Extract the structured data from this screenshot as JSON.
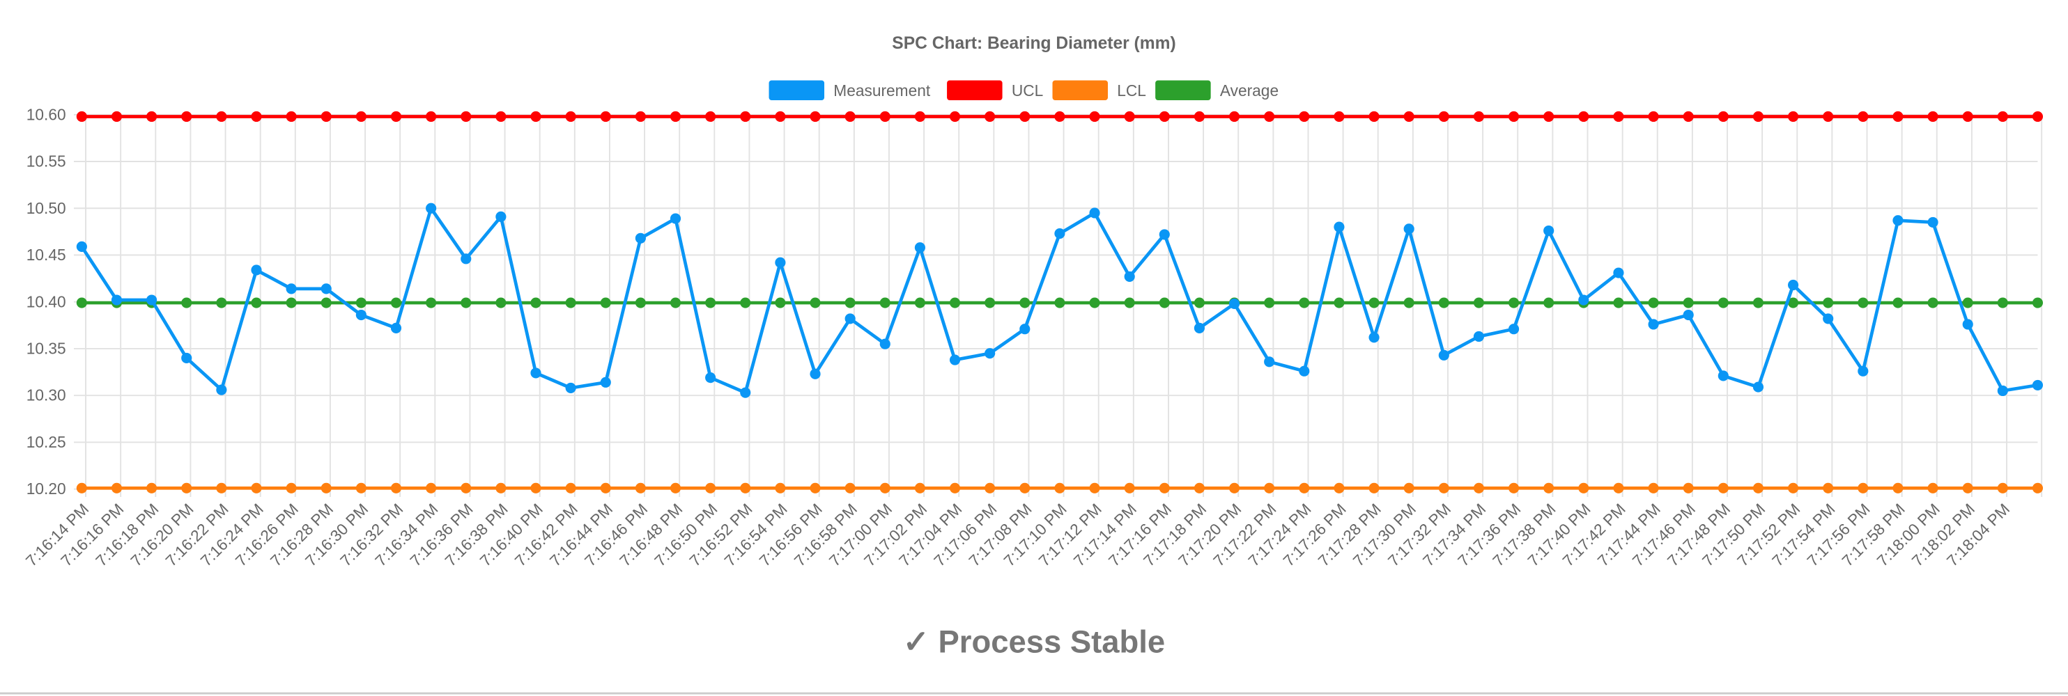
{
  "chart_data": {
    "type": "line",
    "title": "SPC Chart: Bearing Diameter (mm)",
    "xlabel": "",
    "ylabel": "",
    "ylim": [
      10.2,
      10.6
    ],
    "yticks": [
      "10.60",
      "10.55",
      "10.50",
      "10.45",
      "10.40",
      "10.35",
      "10.30",
      "10.25",
      "10.20"
    ],
    "grid": true,
    "legend_position": "top",
    "categories": [
      "7:16:14 PM",
      "7:16:16 PM",
      "7:16:18 PM",
      "7:16:20 PM",
      "7:16:22 PM",
      "7:16:24 PM",
      "7:16:26 PM",
      "7:16:28 PM",
      "7:16:30 PM",
      "7:16:32 PM",
      "7:16:34 PM",
      "7:16:36 PM",
      "7:16:38 PM",
      "7:16:40 PM",
      "7:16:42 PM",
      "7:16:44 PM",
      "7:16:46 PM",
      "7:16:48 PM",
      "7:16:50 PM",
      "7:16:52 PM",
      "7:16:54 PM",
      "7:16:56 PM",
      "7:16:58 PM",
      "7:17:00 PM",
      "7:17:02 PM",
      "7:17:04 PM",
      "7:17:06 PM",
      "7:17:08 PM",
      "7:17:10 PM",
      "7:17:12 PM",
      "7:17:14 PM",
      "7:17:16 PM",
      "7:17:18 PM",
      "7:17:20 PM",
      "7:17:22 PM",
      "7:17:24 PM",
      "7:17:26 PM",
      "7:17:28 PM",
      "7:17:30 PM",
      "7:17:32 PM",
      "7:17:34 PM",
      "7:17:36 PM",
      "7:17:38 PM",
      "7:17:40 PM",
      "7:17:42 PM",
      "7:17:44 PM",
      "7:17:46 PM",
      "7:17:48 PM",
      "7:17:50 PM",
      "7:17:52 PM",
      "7:17:54 PM",
      "7:17:56 PM",
      "7:17:58 PM",
      "7:18:00 PM",
      "7:18:02 PM",
      "7:18:04 PM",
      ""
    ],
    "series": [
      {
        "name": "Measurement",
        "color": "#0a96f5",
        "values": [
          10.459,
          10.402,
          10.402,
          10.34,
          10.306,
          10.434,
          10.414,
          10.414,
          10.386,
          10.372,
          10.5,
          10.446,
          10.491,
          10.324,
          10.308,
          10.314,
          10.468,
          10.489,
          10.319,
          10.303,
          10.442,
          10.323,
          10.382,
          10.355,
          10.458,
          10.338,
          10.345,
          10.371,
          10.473,
          10.495,
          10.427,
          10.472,
          10.372,
          10.398,
          10.336,
          10.326,
          10.48,
          10.362,
          10.478,
          10.343,
          10.363,
          10.371,
          10.476,
          10.402,
          10.431,
          10.376,
          10.386,
          10.321,
          10.309,
          10.418,
          10.382,
          10.326,
          10.487,
          10.485,
          10.376,
          10.305,
          10.311
        ]
      },
      {
        "name": "UCL",
        "color": "#ff0000",
        "constant": 10.598
      },
      {
        "name": "LCL",
        "color": "#ff7f0e",
        "constant": 10.201
      },
      {
        "name": "Average",
        "color": "#2ca02c",
        "constant": 10.399
      }
    ]
  },
  "status": {
    "icon": "check-icon",
    "check": "✓",
    "text": "Process Stable"
  }
}
